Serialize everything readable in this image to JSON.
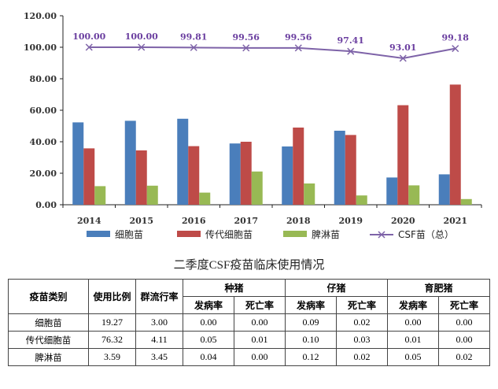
{
  "chart_data": {
    "type": "bar",
    "categories": [
      "2014",
      "2015",
      "2016",
      "2017",
      "2018",
      "2019",
      "2020",
      "2021"
    ],
    "ylim": [
      0,
      120
    ],
    "yticks": [
      "0.00",
      "20.00",
      "40.00",
      "60.00",
      "80.00",
      "100.00",
      "120.00"
    ],
    "grid": false,
    "legend": "bottom",
    "series": [
      {
        "name": "细胞苗",
        "kind": "bar",
        "color": "#4a7ebb",
        "values": [
          52.3,
          53.3,
          54.6,
          38.9,
          37.0,
          47.0,
          17.3,
          19.3
        ]
      },
      {
        "name": "传代细胞苗",
        "kind": "bar",
        "color": "#be4b48",
        "values": [
          35.8,
          34.5,
          37.2,
          40.0,
          49.0,
          44.3,
          63.2,
          76.3
        ]
      },
      {
        "name": "脾淋苗",
        "kind": "bar",
        "color": "#98b954",
        "values": [
          11.8,
          12.1,
          7.7,
          21.1,
          13.5,
          5.9,
          12.3,
          3.6
        ]
      },
      {
        "name": "CSF苗（总）",
        "kind": "line",
        "color": "#7e63a8",
        "values": [
          100.0,
          100.0,
          99.81,
          99.56,
          99.56,
          97.41,
          93.01,
          99.18
        ],
        "labels": [
          "100.00",
          "100.00",
          "99.81",
          "99.56",
          "99.56",
          "97.41",
          "93.01",
          "99.18"
        ]
      }
    ]
  },
  "table": {
    "title": "二季度CSF疫苗临床使用情况",
    "headers": {
      "vaccine_type": "疫苗类别",
      "usage_ratio": "使用比例",
      "outbreak_rate": "群流行率",
      "groups": [
        "种猪",
        "仔猪",
        "育肥猪"
      ],
      "morbidity": "发病率",
      "mortality": "死亡率"
    },
    "rows": [
      {
        "name": "细胞苗",
        "values": [
          "19.27",
          "3.00",
          "0.00",
          "0.00",
          "0.09",
          "0.02",
          "0.00",
          "0.00"
        ]
      },
      {
        "name": "传代细胞苗",
        "values": [
          "76.32",
          "4.11",
          "0.05",
          "0.01",
          "0.10",
          "0.03",
          "0.01",
          "0.00"
        ]
      },
      {
        "name": "脾淋苗",
        "values": [
          "3.59",
          "3.45",
          "0.04",
          "0.00",
          "0.12",
          "0.02",
          "0.05",
          "0.02"
        ]
      }
    ]
  }
}
